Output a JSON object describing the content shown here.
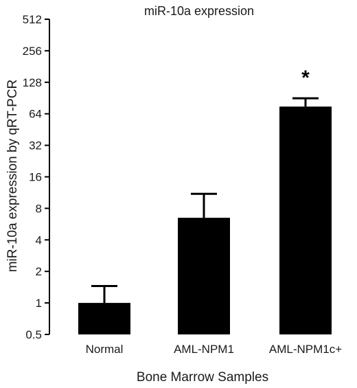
{
  "chart_data": {
    "type": "bar",
    "title": "miR-10a expression",
    "xlabel": "Bone Marrow Samples",
    "ylabel": "miR-10a expression by qRT-PCR",
    "y_scale": "log2",
    "ylim": [
      0.5,
      512
    ],
    "y_ticks": [
      0.5,
      1,
      2,
      4,
      8,
      16,
      32,
      64,
      128,
      256,
      512
    ],
    "y_tick_labels": [
      "0.5",
      "1",
      "2",
      "4",
      "8",
      "16",
      "32",
      "64",
      "128",
      "256",
      "512"
    ],
    "categories": [
      "Normal",
      "AML-NPM1",
      "AML-NPM1c+"
    ],
    "values": [
      1.0,
      6.5,
      75
    ],
    "error_upper": [
      1.45,
      11,
      90
    ],
    "annotations": [
      {
        "category": "AML-NPM1c+",
        "text": "*"
      }
    ],
    "bar_color": "#000000",
    "grid": false,
    "legend": "none"
  }
}
